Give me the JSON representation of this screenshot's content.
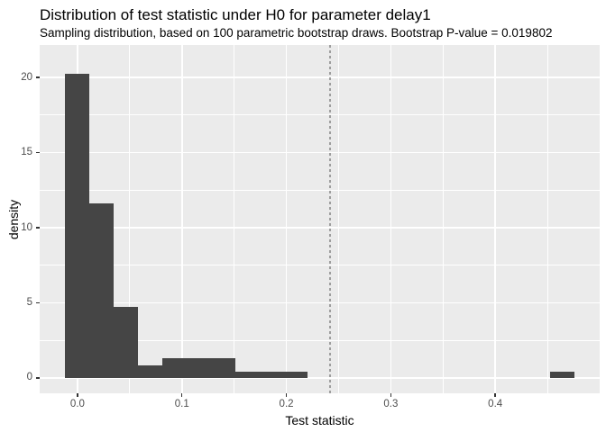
{
  "chart_data": {
    "type": "bar",
    "subtype": "histogram",
    "title": "Distribution of test statistic under H0 for parameter delay1",
    "subtitle": "Sampling distribution, based on 100 parametric bootstrap draws. Bootstrap P-value = 0.019802",
    "xlabel": "Test statistic",
    "ylabel": "density",
    "x_domain": [
      -0.0362,
      0.5
    ],
    "y_domain": [
      -1.02,
      22.16
    ],
    "x_ticks": [
      {
        "value": 0.0,
        "label": "0.0"
      },
      {
        "value": 0.1,
        "label": "0.1"
      },
      {
        "value": 0.2,
        "label": "0.2"
      },
      {
        "value": 0.3,
        "label": "0.3"
      },
      {
        "value": 0.4,
        "label": "0.4"
      }
    ],
    "x_minor": [
      0.05,
      0.15,
      0.25,
      0.35,
      0.45
    ],
    "y_ticks": [
      {
        "value": 0,
        "label": "0"
      },
      {
        "value": 5,
        "label": "5"
      },
      {
        "value": 10,
        "label": "10"
      },
      {
        "value": 15,
        "label": "15"
      },
      {
        "value": 20,
        "label": "20"
      }
    ],
    "y_minor": [
      2.5,
      7.5,
      12.5,
      17.5
    ],
    "bins": [
      {
        "x0": -0.0116,
        "x1": 0.0116,
        "density": 20.26
      },
      {
        "x0": 0.0116,
        "x1": 0.0348,
        "density": 11.64
      },
      {
        "x0": 0.0348,
        "x1": 0.058,
        "density": 4.74
      },
      {
        "x0": 0.058,
        "x1": 0.0812,
        "density": 0.86
      },
      {
        "x0": 0.0812,
        "x1": 0.1044,
        "density": 1.29
      },
      {
        "x0": 0.1044,
        "x1": 0.1276,
        "density": 1.29
      },
      {
        "x0": 0.1276,
        "x1": 0.1508,
        "density": 1.29
      },
      {
        "x0": 0.1508,
        "x1": 0.174,
        "density": 0.43
      },
      {
        "x0": 0.174,
        "x1": 0.1972,
        "density": 0.43
      },
      {
        "x0": 0.1972,
        "x1": 0.2204,
        "density": 0.43
      },
      {
        "x0": 0.4524,
        "x1": 0.4756,
        "density": 0.43
      }
    ],
    "vline": {
      "x": 0.242,
      "style": "dashed"
    },
    "legend": "none",
    "grid": "on",
    "colors": {
      "bar_fill": "#454545",
      "panel_bg": "#EBEBEB",
      "grid": "#FFFFFF",
      "tick_label": "#4D4D4D",
      "tick_mark": "#333333",
      "text": "#000000",
      "vline": "#9E9E9E"
    }
  }
}
